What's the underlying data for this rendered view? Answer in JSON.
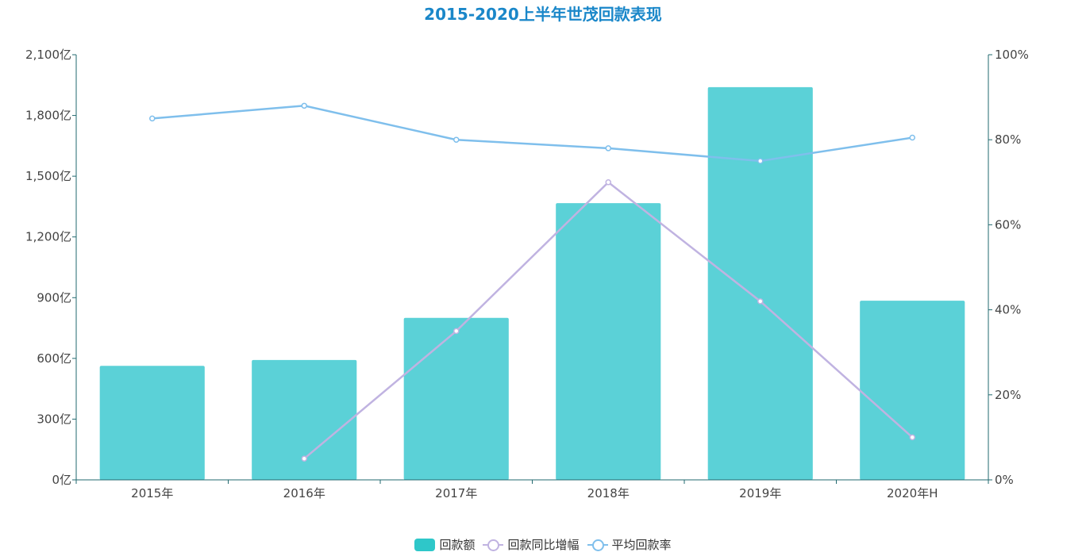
{
  "chart_data": {
    "type": "bar",
    "title": "2015-2020上半年世茂回款表现",
    "categories": [
      "2015年",
      "2016年",
      "2017年",
      "2018年",
      "2019年",
      "2020年H"
    ],
    "y_left": {
      "min": 0,
      "max": 2100,
      "ticks": [
        0,
        300,
        600,
        900,
        1200,
        1500,
        1800,
        2100
      ],
      "unit": "亿",
      "tick_labels": [
        "0亿",
        "300亿",
        "600亿",
        "900亿",
        "1,200亿",
        "1,500亿",
        "1,800亿",
        "2,100亿"
      ]
    },
    "y_right": {
      "min": 0,
      "max": 100,
      "ticks": [
        0,
        20,
        40,
        60,
        80,
        100
      ],
      "unit": "%",
      "tick_labels": [
        "0%",
        "20%",
        "40%",
        "60%",
        "80%",
        "100%"
      ]
    },
    "series": [
      {
        "name": "回款额",
        "type": "bar",
        "axis": "left",
        "color": "#5bd1d7",
        "values": [
          563,
          592,
          800,
          1367,
          1940,
          885
        ]
      },
      {
        "name": "回款同比增幅",
        "type": "line",
        "axis": "right",
        "color": "#c0b3e1",
        "values": [
          null,
          5,
          35,
          70,
          42,
          10
        ]
      },
      {
        "name": "平均回款率",
        "type": "line",
        "axis": "right",
        "color": "#7fbfec",
        "values": [
          85,
          88,
          80,
          78,
          75,
          80.5
        ]
      }
    ],
    "legend_position": "bottom-center",
    "grid": false
  },
  "legend": {
    "bar_color": "#2ec7c9",
    "items": [
      "回款额",
      "回款同比增幅",
      "平均回款率"
    ]
  }
}
